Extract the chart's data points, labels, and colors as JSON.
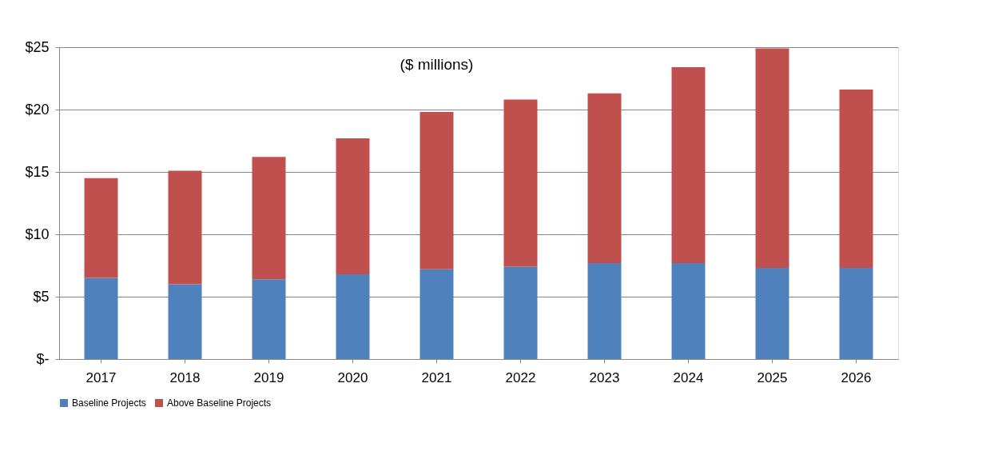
{
  "chart_data": {
    "type": "bar",
    "stacked": true,
    "categories": [
      "2017",
      "2018",
      "2019",
      "2020",
      "2021",
      "2022",
      "2023",
      "2024",
      "2025",
      "2026"
    ],
    "series": [
      {
        "name": "Baseline Projects",
        "color": "#4f81bd",
        "values": [
          6.5,
          6.0,
          6.4,
          6.8,
          7.2,
          7.4,
          7.7,
          7.7,
          7.3,
          7.3
        ]
      },
      {
        "name": "Above Baseline Projects",
        "color": "#c0504d",
        "values": [
          8.0,
          9.1,
          9.8,
          10.9,
          12.6,
          13.4,
          13.6,
          15.7,
          17.6,
          14.3
        ]
      }
    ],
    "ylim": [
      0,
      25
    ],
    "yticks": [
      {
        "value": 0,
        "label": "$-"
      },
      {
        "value": 5,
        "label": "$5"
      },
      {
        "value": 10,
        "label": "$10"
      },
      {
        "value": 15,
        "label": "$15"
      },
      {
        "value": 20,
        "label": "$20"
      },
      {
        "value": 25,
        "label": "$25"
      }
    ],
    "grid": "y",
    "legend": "bottom",
    "annotations": [
      "($ millions)"
    ]
  }
}
